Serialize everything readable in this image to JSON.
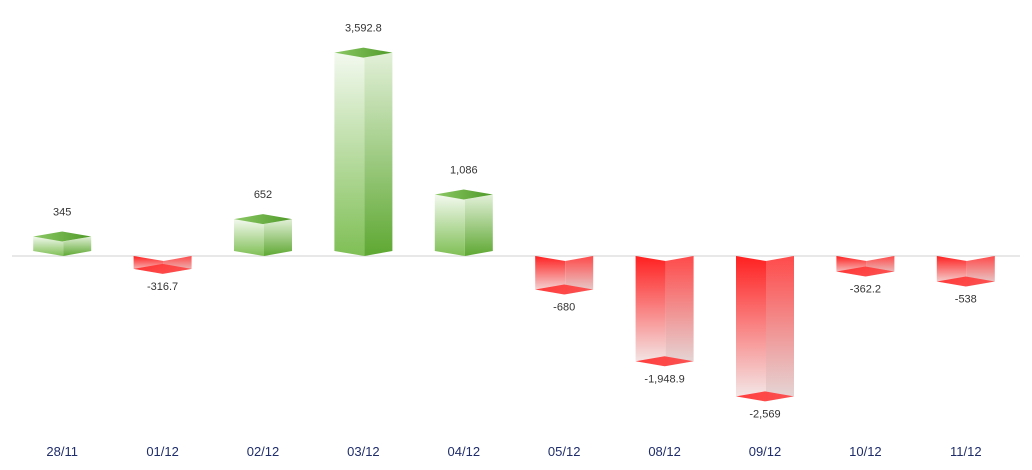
{
  "chart_data": {
    "type": "bar",
    "title": "",
    "xlabel": "",
    "ylabel": "",
    "categories": [
      "28/11",
      "01/12",
      "02/12",
      "03/12",
      "04/12",
      "05/12",
      "08/12",
      "09/12",
      "10/12",
      "11/12"
    ],
    "values": [
      345,
      -316.7,
      652,
      3592.8,
      1086,
      -680,
      -1948.9,
      -2569,
      -362.2,
      -538
    ],
    "value_labels": [
      "345",
      "-316.7",
      "652",
      "3,592.8",
      "1,086",
      "-680",
      "-1,948.9",
      "-2,569",
      "-362.2",
      "-538"
    ],
    "ylim": [
      -2569,
      3592.8
    ],
    "grid": false,
    "legend": "none",
    "colors": {
      "positive_dark": "#5ea832",
      "positive_light": "#eef6e8",
      "negative_dark": "#ff1a1a",
      "negative_light": "#f0e4e4",
      "axis": "#d0d0d0",
      "category_text": "#1f2d6b"
    }
  }
}
